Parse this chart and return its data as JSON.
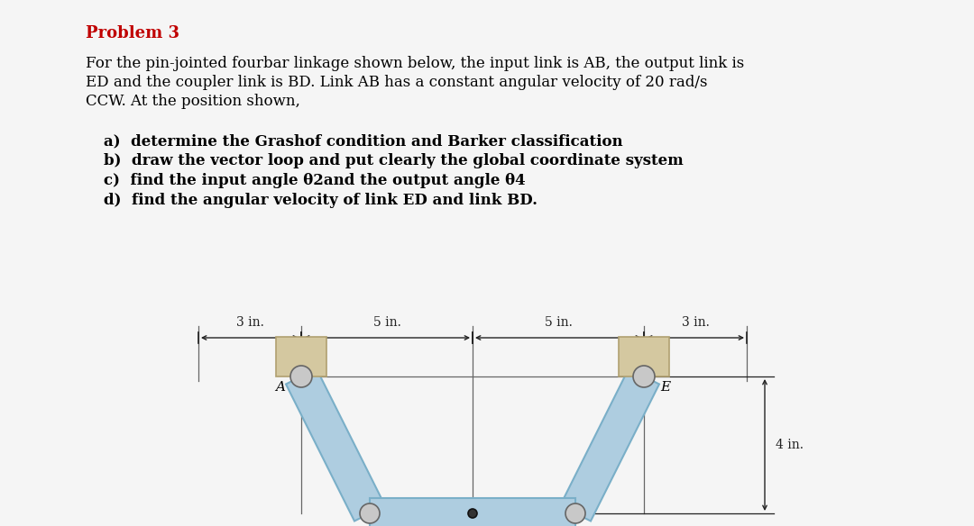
{
  "title": "Problem 3",
  "bg_color": "#f5f5f5",
  "text_color": "#000000",
  "title_color": "#c00000",
  "problem_text_line1": "For the pin-jointed fourbar linkage shown below, the input link is AB, the output link is",
  "problem_text_line2": "ED and the coupler link is BD. Link AB has a constant angular velocity of 20 rad/s",
  "problem_text_line3": "CCW. At the position shown,",
  "items": [
    "a)  determine the Grashof condition and Barker classification",
    "b)  draw the vector loop and put clearly the global coordinate system",
    "c)  find the input angle θ2and the output angle θ4",
    "d)  find the angular velocity of link ED and link BD."
  ],
  "dim_labels": [
    "3 in.",
    "5 in.",
    "5 in.",
    "3 in."
  ],
  "side_dim": "4 in.",
  "link_color": "#aecde0",
  "link_edge_color": "#7aafc8",
  "ground_color": "#d4c8a0",
  "ground_edge_color": "#b0a070",
  "dim_line_color": "#222222",
  "guide_line_color": "#666666",
  "pin_color_light": "#d0d0d0",
  "pin_edge_color": "#777777",
  "dark_pin_color": "#333333",
  "fontsize_title": 13,
  "fontsize_body": 12,
  "fontsize_items": 12,
  "fontsize_dim": 10,
  "fontsize_label": 11
}
